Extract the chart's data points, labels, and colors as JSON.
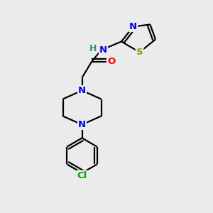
{
  "background_color": "#ebebeb",
  "atom_colors": {
    "C": "#000000",
    "N": "#0000ff",
    "O": "#ff0000",
    "S": "#999900",
    "Cl": "#00aa00",
    "H": "#3a8a8a",
    "NH_N": "#0000ff"
  },
  "lw": 1.6,
  "fontsize": 9.5
}
